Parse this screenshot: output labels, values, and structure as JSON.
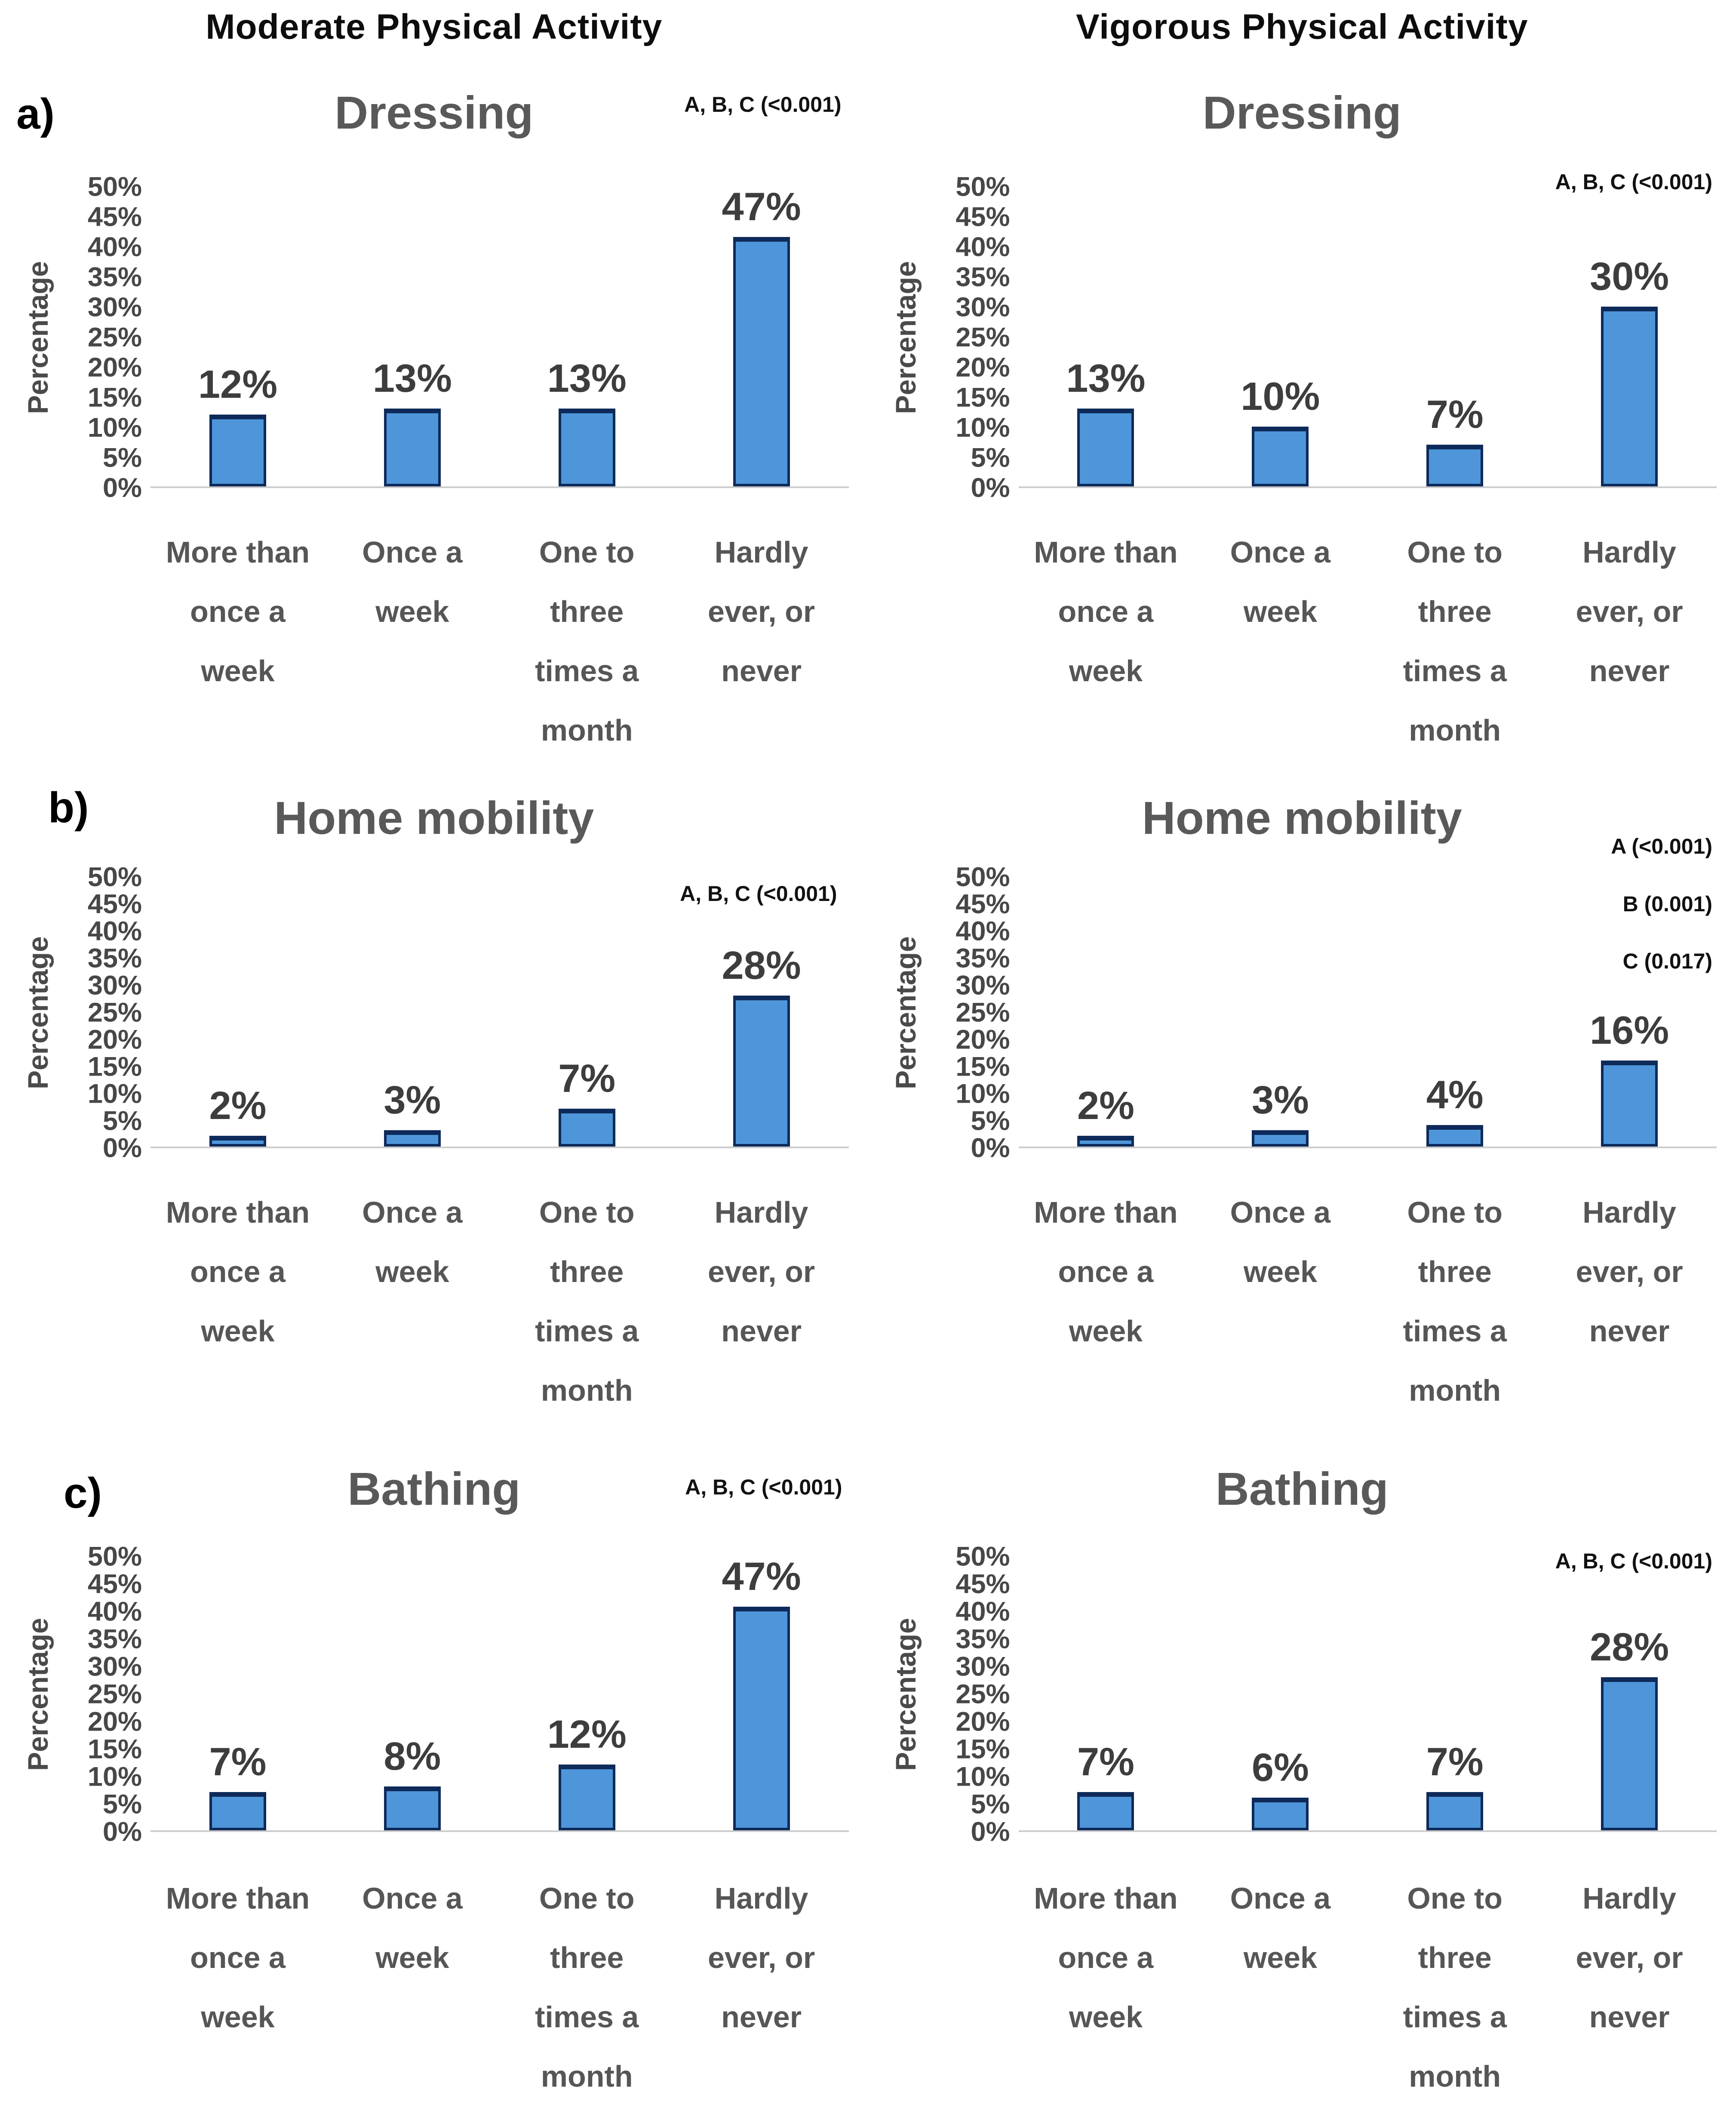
{
  "page": {
    "column_headers": [
      "Moderate Physical Activity",
      "Vigorous Physical Activity"
    ],
    "row_labels": [
      "a)",
      "b)",
      "c)"
    ],
    "ylabel": "Percentage",
    "yticks": [
      "50%",
      "45%",
      "40%",
      "35%",
      "30%",
      "25%",
      "20%",
      "15%",
      "10%",
      "5%",
      "0%"
    ],
    "colors": {
      "bar_fill": "#4e96d9",
      "bar_border": "#0e2a5a",
      "title_text": "#595959",
      "axis_text": "#474747",
      "data_label_text": "#3d3d3d",
      "annotation_text": "#111111",
      "baseline": "#cdcdcd"
    }
  },
  "categories_display": [
    "More than\nonce a\nweek",
    "Once a\nweek",
    "One to\nthree\ntimes a\nmonth",
    "Hardly\never, or\nnever"
  ],
  "chart_data": [
    {
      "type": "bar",
      "panel": "a",
      "activity": "Moderate Physical Activity",
      "title": "Dressing",
      "ylabel": "Percentage",
      "ylim": [
        0,
        50
      ],
      "ytick_step": 5,
      "categories": [
        "More than once a week",
        "Once a week",
        "One to three times a month",
        "Hardly ever, or never"
      ],
      "values": [
        12,
        13,
        13,
        47
      ],
      "value_labels": [
        "12%",
        "13%",
        "13%",
        "47%"
      ],
      "annotations": [
        "A, B, C (<0.001)"
      ]
    },
    {
      "type": "bar",
      "panel": "a",
      "activity": "Vigorous Physical Activity",
      "title": "Dressing",
      "ylabel": "Percentage",
      "ylim": [
        0,
        50
      ],
      "ytick_step": 5,
      "categories": [
        "More than once a week",
        "Once a week",
        "One to three times a month",
        "Hardly ever, or never"
      ],
      "values": [
        13,
        10,
        7,
        30
      ],
      "value_labels": [
        "13%",
        "10%",
        "7%",
        "30%"
      ],
      "annotations": [
        "A, B, C (<0.001)"
      ]
    },
    {
      "type": "bar",
      "panel": "b",
      "activity": "Moderate Physical Activity",
      "title": "Home mobility",
      "ylabel": "Percentage",
      "ylim": [
        0,
        50
      ],
      "ytick_step": 5,
      "categories": [
        "More than once a week",
        "Once a week",
        "One to three times a month",
        "Hardly ever, or never"
      ],
      "values": [
        2,
        3,
        7,
        28
      ],
      "value_labels": [
        "2%",
        "3%",
        "7%",
        "28%"
      ],
      "annotations": [
        "A, B, C (<0.001)"
      ]
    },
    {
      "type": "bar",
      "panel": "b",
      "activity": "Vigorous Physical Activity",
      "title": "Home mobility",
      "ylabel": "Percentage",
      "ylim": [
        0,
        50
      ],
      "ytick_step": 5,
      "categories": [
        "More than once a week",
        "Once a week",
        "One to three times a month",
        "Hardly ever, or never"
      ],
      "values": [
        2,
        3,
        4,
        16
      ],
      "value_labels": [
        "2%",
        "3%",
        "4%",
        "16%"
      ],
      "annotations": [
        "A (<0.001)",
        "B (0.001)",
        "C (0.017)"
      ]
    },
    {
      "type": "bar",
      "panel": "c",
      "activity": "Moderate Physical Activity",
      "title": "Bathing",
      "ylabel": "Percentage",
      "ylim": [
        0,
        50
      ],
      "ytick_step": 5,
      "categories": [
        "More than once a week",
        "Once a week",
        "One to three times a month",
        "Hardly ever, or never"
      ],
      "values": [
        7,
        8,
        12,
        47
      ],
      "value_labels": [
        "7%",
        "8%",
        "12%",
        "47%"
      ],
      "annotations": [
        "A, B, C (<0.001)"
      ]
    },
    {
      "type": "bar",
      "panel": "c",
      "activity": "Vigorous Physical Activity",
      "title": "Bathing",
      "ylabel": "Percentage",
      "ylim": [
        0,
        50
      ],
      "ytick_step": 5,
      "categories": [
        "More than once a week",
        "Once a week",
        "One to three times a month",
        "Hardly ever, or never"
      ],
      "values": [
        7,
        6,
        7,
        28
      ],
      "value_labels": [
        "7%",
        "6%",
        "7%",
        "28%"
      ],
      "annotations": [
        "A, B, C (<0.001)"
      ]
    }
  ]
}
